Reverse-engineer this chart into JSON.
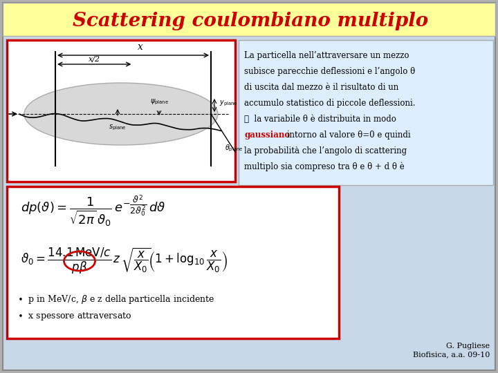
{
  "title": "Scattering coulombiano multiplo",
  "title_color": "#cc0000",
  "title_bg": "#ffff99",
  "title_fontsize": 20,
  "slide_bg": "#c8d8e8",
  "text_block_bg": "#ddeeff",
  "text_block_border": "#cc0000",
  "diagram_border": "#cc0000",
  "diagram_bg": "#ffffff",
  "body_text": "La particella nell’attraversare un mezzo\nsubisce parecchie deflessioni e l’angolo θ\ndi uscita dal mezzo è il risultato di un\naccumulo statistico di piccole deflessioni.\n➤  la variabile θ è distribuita in modo\ngaussiano intorno al valore θ=0 e quindi\nla probabilità che l’angolo di scattering\nmultiplo sia compreso tra θ e θ + d θ è",
  "gaussian_word": "gaussiano",
  "formula_bg": "#ffffff",
  "formula_border": "#cc0000",
  "formula_text_1": "$dp(\\vartheta) = \\dfrac{1}{\\sqrt{2\\pi}\\,\\vartheta_0}\\, e^{-\\dfrac{\\vartheta^2}{2\\vartheta_0^2}}\\, d\\vartheta$",
  "formula_text_2": "$\\vartheta_0 = \\dfrac{14.1\\,\\text{MeV}/c}{p\\beta}\\, z\\, \\sqrt{\\dfrac{x}{X_0}}\\left(1 + \\log_{10}\\dfrac{x}{X_0}\\right)$",
  "bullet1": "•  p in MeV/c, β e z della particella incidente",
  "bullet2": "•  x spessore attraversato",
  "attribution": "G. Pugliese\nBiofisica, a.a. 09-10",
  "outer_bg": "#b0b0b0"
}
